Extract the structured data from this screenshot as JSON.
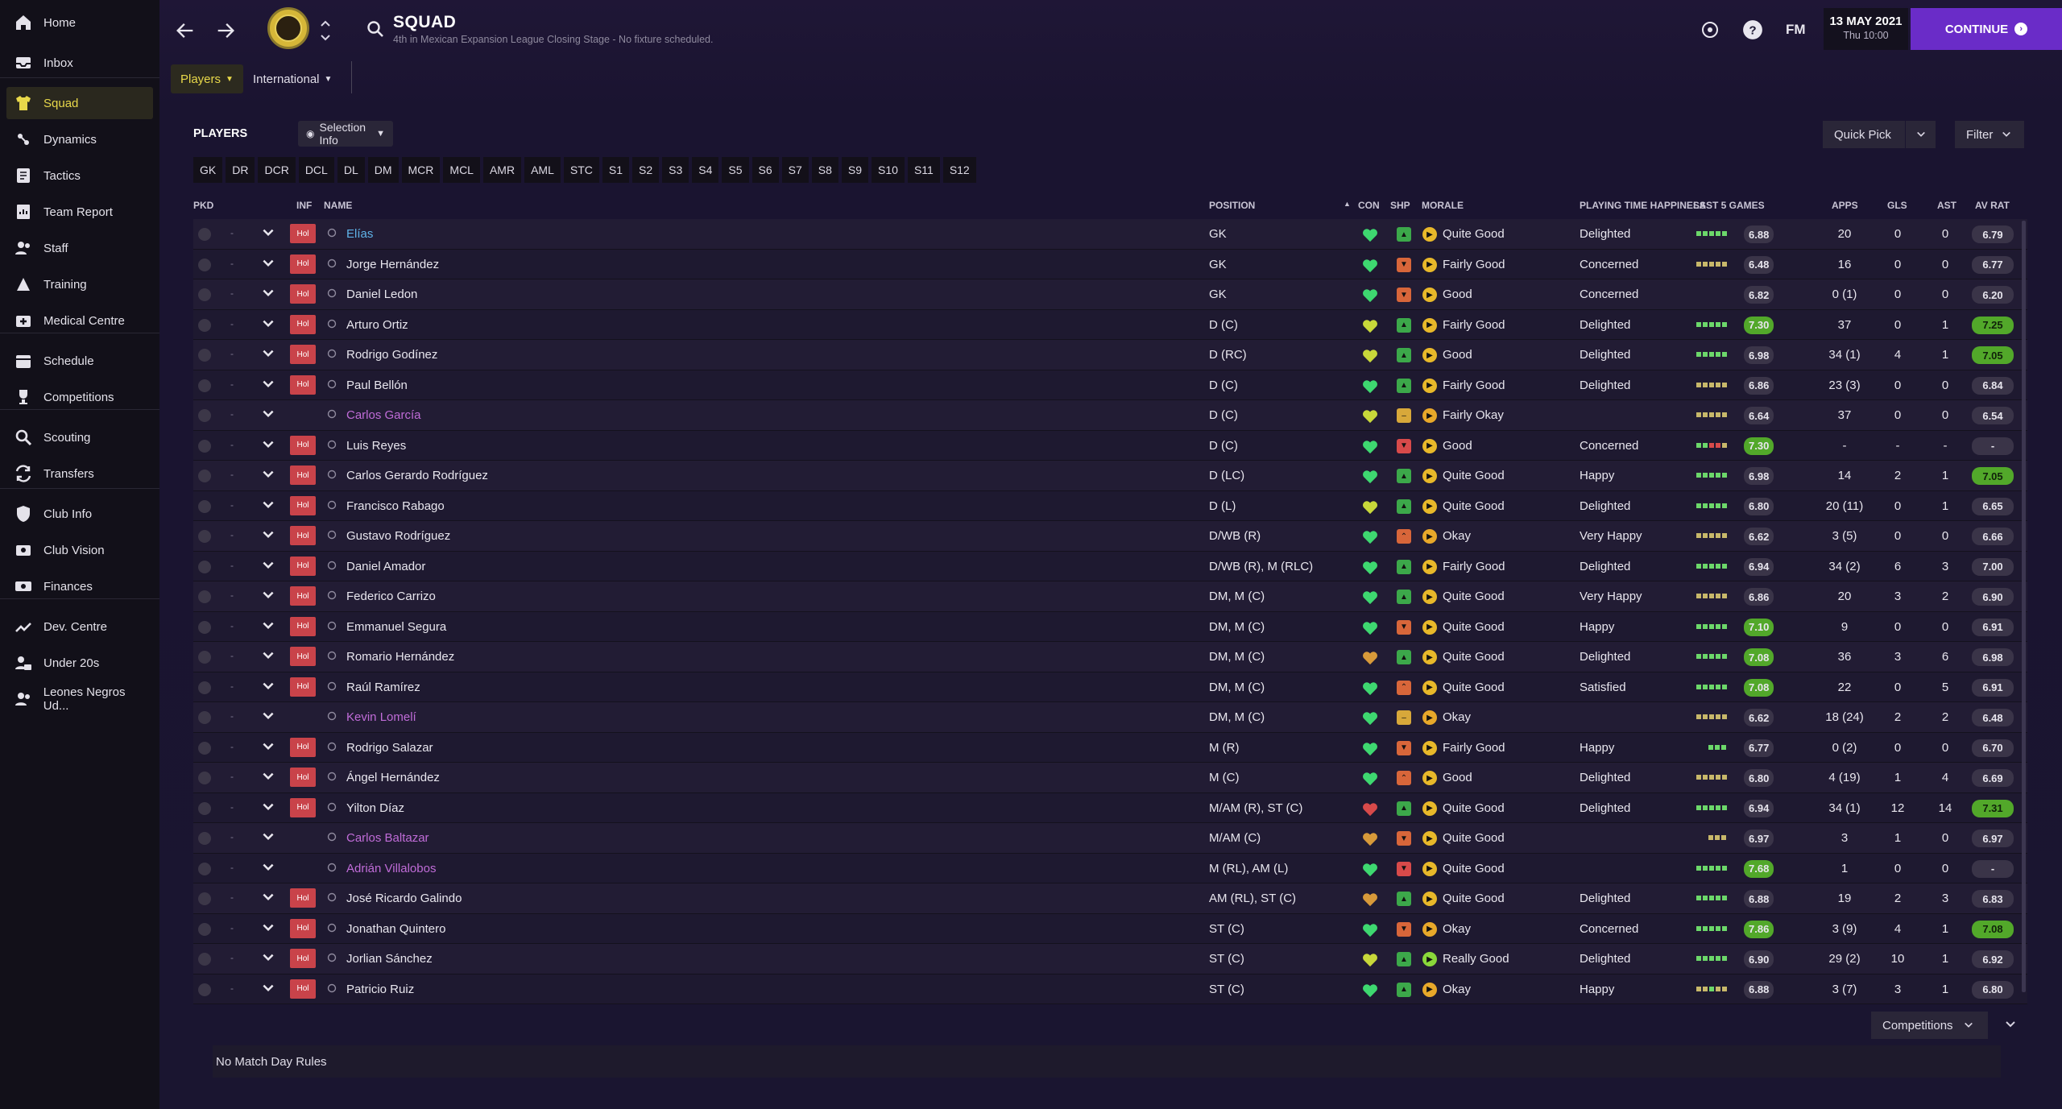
{
  "sidebar": {
    "items": [
      {
        "label": "Home",
        "icon": "home-icon",
        "active": false
      },
      {
        "label": "Inbox",
        "icon": "inbox-icon",
        "active": false
      },
      {
        "label": "Squad",
        "icon": "shirt-icon",
        "active": true
      },
      {
        "label": "Dynamics",
        "icon": "dynamics-icon",
        "active": false
      },
      {
        "label": "Tactics",
        "icon": "tactics-icon",
        "active": false
      },
      {
        "label": "Team Report",
        "icon": "report-icon",
        "active": false
      },
      {
        "label": "Staff",
        "icon": "staff-icon",
        "active": false
      },
      {
        "label": "Training",
        "icon": "training-icon",
        "active": false
      },
      {
        "label": "Medical Centre",
        "icon": "medical-icon",
        "active": false
      },
      {
        "label": "Schedule",
        "icon": "calendar-icon",
        "active": false
      },
      {
        "label": "Competitions",
        "icon": "trophy-icon",
        "active": false
      },
      {
        "label": "Scouting",
        "icon": "scouting-icon",
        "active": false
      },
      {
        "label": "Transfers",
        "icon": "transfers-icon",
        "active": false
      },
      {
        "label": "Club Info",
        "icon": "shield-icon",
        "active": false
      },
      {
        "label": "Club Vision",
        "icon": "vision-icon",
        "active": false
      },
      {
        "label": "Finances",
        "icon": "finances-icon",
        "active": false
      },
      {
        "label": "Dev. Centre",
        "icon": "devcentre-icon",
        "active": false
      },
      {
        "label": "Under 20s",
        "icon": "u20-icon",
        "active": false
      },
      {
        "label": "Leones Negros Ud...",
        "icon": "reserve-team-icon",
        "active": false
      }
    ]
  },
  "header": {
    "title": "SQUAD",
    "subtitle": "4th in Mexican Expansion League Closing Stage - No fixture scheduled.",
    "fm_label": "FM",
    "date": "13 MAY 2021",
    "time": "Thu 10:00",
    "continue_label": "CONTINUE"
  },
  "tabs": [
    {
      "label": "Players",
      "active": true
    },
    {
      "label": "International",
      "active": false
    }
  ],
  "panel": {
    "title": "PLAYERS",
    "selection_info": "Selection Info",
    "quick_pick": "Quick Pick",
    "filter": "Filter"
  },
  "position_filters": [
    "GK",
    "DR",
    "DCR",
    "DCL",
    "DL",
    "DM",
    "MCR",
    "MCL",
    "AMR",
    "AML",
    "STC",
    "S1",
    "S2",
    "S3",
    "S4",
    "S5",
    "S6",
    "S7",
    "S8",
    "S9",
    "S10",
    "S11",
    "S12"
  ],
  "columns": {
    "pkd": "PKD",
    "inf": "INF",
    "name": "NAME",
    "position": "POSITION",
    "con": "CON",
    "shp": "SHP",
    "morale": "MORALE",
    "pth": "PLAYING TIME HAPPINESS",
    "last5": "LAST 5 GAMES",
    "apps": "APPS",
    "gls": "GLS",
    "ast": "AST",
    "avrat": "AV RAT"
  },
  "colors": {
    "accent": "#6a2cc8",
    "active_yellow": "#e8d84a",
    "hol_badge": "#c9434a",
    "rating_green": "#52a82a",
    "rating_grey": "#3a3448",
    "heart_green": "#3ed870",
    "heart_yellow": "#c8d83a",
    "heart_orange": "#d89a3a",
    "heart_red": "#d84a4a"
  },
  "players": [
    {
      "pkd": "-",
      "inf": "Hol",
      "name": "Elías",
      "name_color": "blue",
      "position": "GK",
      "con": "green",
      "shp": "up",
      "morale": "Quite Good",
      "pth": "Delighted",
      "bars": "ggggg",
      "last5": "6.88",
      "last5_hi": false,
      "apps": "20",
      "gls": "0",
      "ast": "0",
      "avrat": "6.79",
      "avrat_hi": false
    },
    {
      "pkd": "-",
      "inf": "Hol",
      "name": "Jorge Hernández",
      "name_color": "white",
      "position": "GK",
      "con": "green",
      "shp": "down",
      "morale": "Fairly Good",
      "pth": "Concerned",
      "bars": "yyyyy",
      "last5": "6.48",
      "last5_hi": false,
      "apps": "16",
      "gls": "0",
      "ast": "0",
      "avrat": "6.77",
      "avrat_hi": false
    },
    {
      "pkd": "-",
      "inf": "Hol",
      "name": "Daniel Ledon",
      "name_color": "white",
      "position": "GK",
      "con": "green",
      "shp": "down",
      "morale": "Good",
      "pth": "Concerned",
      "bars": "",
      "last5": "6.82",
      "last5_hi": false,
      "apps": "0 (1)",
      "gls": "0",
      "ast": "0",
      "avrat": "6.20",
      "avrat_hi": false
    },
    {
      "pkd": "-",
      "inf": "Hol",
      "name": "Arturo Ortiz",
      "name_color": "white",
      "position": "D (C)",
      "con": "yellow",
      "shp": "up",
      "morale": "Fairly Good",
      "pth": "Delighted",
      "bars": "ggggg",
      "last5": "7.30",
      "last5_hi": true,
      "apps": "37",
      "gls": "0",
      "ast": "1",
      "avrat": "7.25",
      "avrat_hi": true
    },
    {
      "pkd": "-",
      "inf": "Hol",
      "name": "Rodrigo Godínez",
      "name_color": "white",
      "position": "D (RC)",
      "con": "yellow",
      "shp": "up",
      "morale": "Good",
      "pth": "Delighted",
      "bars": "ggggg",
      "last5": "6.98",
      "last5_hi": false,
      "apps": "34 (1)",
      "gls": "4",
      "ast": "1",
      "avrat": "7.05",
      "avrat_hi": true
    },
    {
      "pkd": "-",
      "inf": "Hol",
      "name": "Paul Bellón",
      "name_color": "white",
      "position": "D (C)",
      "con": "green",
      "shp": "up",
      "morale": "Fairly Good",
      "pth": "Delighted",
      "bars": "yyyyy",
      "last5": "6.86",
      "last5_hi": false,
      "apps": "23 (3)",
      "gls": "0",
      "ast": "0",
      "avrat": "6.84",
      "avrat_hi": false
    },
    {
      "pkd": "-",
      "inf": "",
      "name": "Carlos García",
      "name_color": "purple",
      "position": "D (C)",
      "con": "yellow",
      "shp": "flat",
      "morale": "Fairly Okay",
      "pth": "",
      "bars": "yyyyy",
      "last5": "6.64",
      "last5_hi": false,
      "apps": "37",
      "gls": "0",
      "ast": "0",
      "avrat": "6.54",
      "avrat_hi": false
    },
    {
      "pkd": "-",
      "inf": "Hol",
      "name": "Luis Reyes",
      "name_color": "white",
      "position": "D (C)",
      "con": "green",
      "shp": "downred",
      "morale": "Good",
      "pth": "Concerned",
      "bars": "ggrry",
      "last5": "7.30",
      "last5_hi": true,
      "apps": "-",
      "gls": "-",
      "ast": "-",
      "avrat": "-",
      "avrat_hi": false
    },
    {
      "pkd": "-",
      "inf": "Hol",
      "name": "Carlos Gerardo Rodríguez",
      "name_color": "white",
      "position": "D (LC)",
      "con": "green",
      "shp": "up",
      "morale": "Quite Good",
      "pth": "Happy",
      "bars": "ggggg",
      "last5": "6.98",
      "last5_hi": false,
      "apps": "14",
      "gls": "2",
      "ast": "1",
      "avrat": "7.05",
      "avrat_hi": true
    },
    {
      "pkd": "-",
      "inf": "Hol",
      "name": "Francisco Rabago",
      "name_color": "white",
      "position": "D (L)",
      "con": "yellow",
      "shp": "up",
      "morale": "Quite Good",
      "pth": "Delighted",
      "bars": "ggggg",
      "last5": "6.80",
      "last5_hi": false,
      "apps": "20 (11)",
      "gls": "0",
      "ast": "1",
      "avrat": "6.65",
      "avrat_hi": false
    },
    {
      "pkd": "-",
      "inf": "Hol",
      "name": "Gustavo Rodríguez",
      "name_color": "white",
      "position": "D/WB (R)",
      "con": "green",
      "shp": "upflat",
      "morale": "Okay",
      "pth": "Very Happy",
      "bars": "yyyyy",
      "last5": "6.62",
      "last5_hi": false,
      "apps": "3 (5)",
      "gls": "0",
      "ast": "0",
      "avrat": "6.66",
      "avrat_hi": false
    },
    {
      "pkd": "-",
      "inf": "Hol",
      "name": "Daniel Amador",
      "name_color": "white",
      "position": "D/WB (R), M (RLC)",
      "con": "green",
      "shp": "up",
      "morale": "Fairly Good",
      "pth": "Delighted",
      "bars": "ggggg",
      "last5": "6.94",
      "last5_hi": false,
      "apps": "34 (2)",
      "gls": "6",
      "ast": "3",
      "avrat": "7.00",
      "avrat_hi": false
    },
    {
      "pkd": "-",
      "inf": "Hol",
      "name": "Federico Carrizo",
      "name_color": "white",
      "position": "DM, M (C)",
      "con": "green",
      "shp": "up",
      "morale": "Quite Good",
      "pth": "Very Happy",
      "bars": "yyyyy",
      "last5": "6.86",
      "last5_hi": false,
      "apps": "20",
      "gls": "3",
      "ast": "2",
      "avrat": "6.90",
      "avrat_hi": false
    },
    {
      "pkd": "-",
      "inf": "Hol",
      "name": "Emmanuel Segura",
      "name_color": "white",
      "position": "DM, M (C)",
      "con": "green",
      "shp": "down",
      "morale": "Quite Good",
      "pth": "Happy",
      "bars": "ggggg",
      "last5": "7.10",
      "last5_hi": true,
      "apps": "9",
      "gls": "0",
      "ast": "0",
      "avrat": "6.91",
      "avrat_hi": false
    },
    {
      "pkd": "-",
      "inf": "Hol",
      "name": "Romario Hernández",
      "name_color": "white",
      "position": "DM, M (C)",
      "con": "orange",
      "shp": "up",
      "morale": "Quite Good",
      "pth": "Delighted",
      "bars": "ggggg",
      "last5": "7.08",
      "last5_hi": true,
      "apps": "36",
      "gls": "3",
      "ast": "6",
      "avrat": "6.98",
      "avrat_hi": false
    },
    {
      "pkd": "-",
      "inf": "Hol",
      "name": "Raúl Ramírez",
      "name_color": "white",
      "position": "DM, M (C)",
      "con": "green",
      "shp": "upflat",
      "morale": "Quite Good",
      "pth": "Satisfied",
      "bars": "ggggg",
      "last5": "7.08",
      "last5_hi": true,
      "apps": "22",
      "gls": "0",
      "ast": "5",
      "avrat": "6.91",
      "avrat_hi": false
    },
    {
      "pkd": "-",
      "inf": "",
      "name": "Kevin Lomelí",
      "name_color": "purple",
      "position": "DM, M (C)",
      "con": "green",
      "shp": "flat",
      "morale": "Okay",
      "pth": "",
      "bars": "yyyyy",
      "last5": "6.62",
      "last5_hi": false,
      "apps": "18 (24)",
      "gls": "2",
      "ast": "2",
      "avrat": "6.48",
      "avrat_hi": false
    },
    {
      "pkd": "-",
      "inf": "Hol",
      "name": "Rodrigo Salazar",
      "name_color": "white",
      "position": "M (R)",
      "con": "green",
      "shp": "down",
      "morale": "Fairly Good",
      "pth": "Happy",
      "bars": "ggg",
      "last5": "6.77",
      "last5_hi": false,
      "apps": "0 (2)",
      "gls": "0",
      "ast": "0",
      "avrat": "6.70",
      "avrat_hi": false
    },
    {
      "pkd": "-",
      "inf": "Hol",
      "name": "Ángel Hernández",
      "name_color": "white",
      "position": "M (C)",
      "con": "green",
      "shp": "upflat",
      "morale": "Good",
      "pth": "Delighted",
      "bars": "yyyyy",
      "last5": "6.80",
      "last5_hi": false,
      "apps": "4 (19)",
      "gls": "1",
      "ast": "4",
      "avrat": "6.69",
      "avrat_hi": false
    },
    {
      "pkd": "-",
      "inf": "Hol",
      "name": "Yilton Díaz",
      "name_color": "white",
      "position": "M/AM (R), ST (C)",
      "con": "red",
      "shp": "up",
      "morale": "Quite Good",
      "pth": "Delighted",
      "bars": "ggggg",
      "last5": "6.94",
      "last5_hi": false,
      "apps": "34 (1)",
      "gls": "12",
      "ast": "14",
      "avrat": "7.31",
      "avrat_hi": true
    },
    {
      "pkd": "-",
      "inf": "",
      "name": "Carlos Baltazar",
      "name_color": "purple",
      "position": "M/AM (C)",
      "con": "orange",
      "shp": "down",
      "morale": "Quite Good",
      "pth": "",
      "bars": "yyy",
      "last5": "6.97",
      "last5_hi": false,
      "apps": "3",
      "gls": "1",
      "ast": "0",
      "avrat": "6.97",
      "avrat_hi": false
    },
    {
      "pkd": "-",
      "inf": "",
      "name": "Adrián Villalobos",
      "name_color": "purple",
      "position": "M (RL), AM (L)",
      "con": "green",
      "shp": "downred",
      "morale": "Quite Good",
      "pth": "",
      "bars": "ggggg",
      "last5": "7.68",
      "last5_hi": true,
      "apps": "1",
      "gls": "0",
      "ast": "0",
      "avrat": "-",
      "avrat_hi": false
    },
    {
      "pkd": "-",
      "inf": "Hol",
      "name": "José Ricardo Galindo",
      "name_color": "white",
      "position": "AM (RL), ST (C)",
      "con": "orange",
      "shp": "up",
      "morale": "Quite Good",
      "pth": "Delighted",
      "bars": "ggggg",
      "last5": "6.88",
      "last5_hi": false,
      "apps": "19",
      "gls": "2",
      "ast": "3",
      "avrat": "6.83",
      "avrat_hi": false
    },
    {
      "pkd": "-",
      "inf": "Hol",
      "name": "Jonathan Quintero",
      "name_color": "white",
      "position": "ST (C)",
      "con": "green",
      "shp": "down",
      "morale": "Okay",
      "pth": "Concerned",
      "bars": "ggggg",
      "last5": "7.86",
      "last5_hi": true,
      "apps": "3 (9)",
      "gls": "4",
      "ast": "1",
      "avrat": "7.08",
      "avrat_hi": true
    },
    {
      "pkd": "-",
      "inf": "Hol",
      "name": "Jorlian Sánchez",
      "name_color": "white",
      "position": "ST (C)",
      "con": "yellow",
      "shp": "up",
      "morale": "Really Good",
      "pth": "Delighted",
      "bars": "ggggg",
      "last5": "6.90",
      "last5_hi": false,
      "apps": "29 (2)",
      "gls": "10",
      "ast": "1",
      "avrat": "6.92",
      "avrat_hi": false
    },
    {
      "pkd": "-",
      "inf": "Hol",
      "name": "Patricio Ruiz",
      "name_color": "white",
      "position": "ST (C)",
      "con": "green",
      "shp": "up",
      "morale": "Okay",
      "pth": "Happy",
      "bars": "yygyy",
      "last5": "6.88",
      "last5_hi": false,
      "apps": "3 (7)",
      "gls": "3",
      "ast": "1",
      "avrat": "6.80",
      "avrat_hi": false
    }
  ],
  "footer": {
    "competitions": "Competitions",
    "match_day_rules": "No Match Day Rules"
  }
}
